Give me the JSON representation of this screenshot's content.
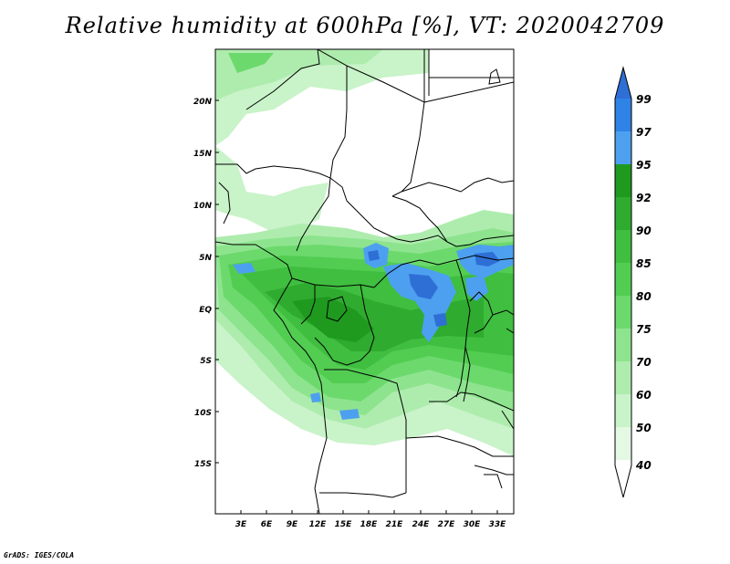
{
  "title": "Relative humidity at 600hPa [%], VT: 2020042709",
  "credit": "GrADS: IGES/COLA",
  "map": {
    "lat_labels": [
      "20N",
      "15N",
      "10N",
      "5N",
      "EQ",
      "5S",
      "10S",
      "15S"
    ],
    "lon_labels": [
      "3E",
      "6E",
      "9E",
      "12E",
      "15E",
      "18E",
      "21E",
      "24E",
      "27E",
      "30E",
      "33E"
    ]
  },
  "colorbar": {
    "labels": [
      "99",
      "97",
      "95",
      "92",
      "90",
      "85",
      "80",
      "75",
      "70",
      "60",
      "50",
      "40"
    ],
    "colors": [
      "#2e6fd6",
      "#2f82e6",
      "#4da0ef",
      "#1f9a1f",
      "#2fab2f",
      "#3fbe3f",
      "#52cd52",
      "#6cd96c",
      "#8ee48e",
      "#aeecae",
      "#c9f3c9",
      "#e3f9e3",
      "#ffffff"
    ]
  }
}
